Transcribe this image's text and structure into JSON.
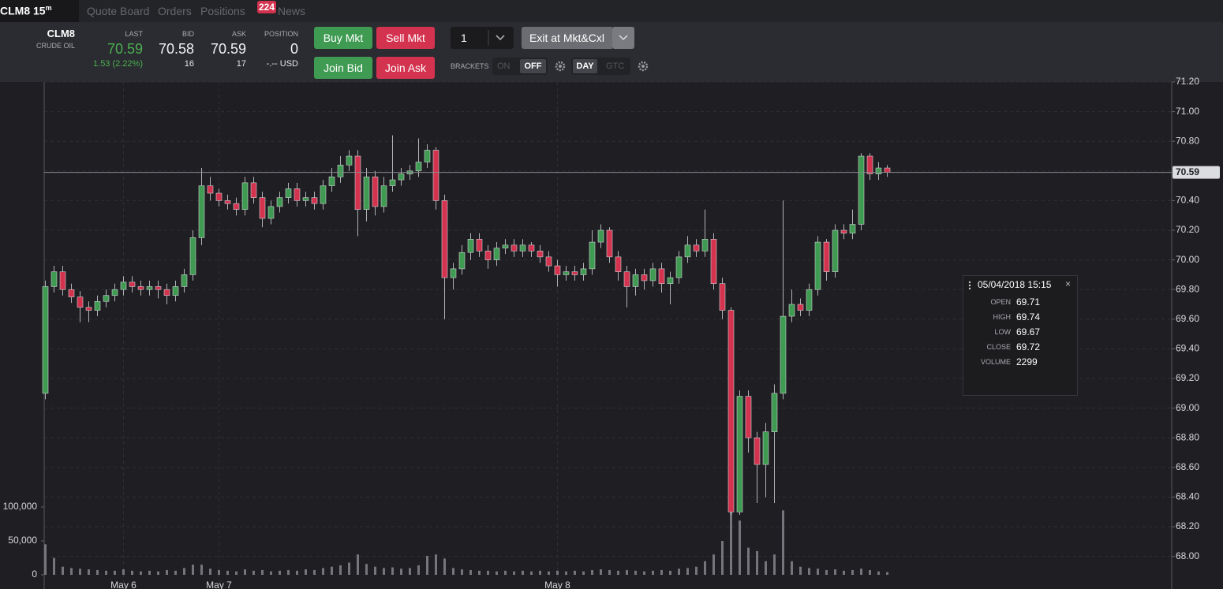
{
  "header": {
    "symbol": "CLM8",
    "interval": "15",
    "interval_unit": "m",
    "tabs": [
      "Quote Board",
      "Orders",
      "Positions",
      "News"
    ],
    "news_badge": "224"
  },
  "ticket": {
    "symbol": "CLM8",
    "name": "CRUDE OIL",
    "fields": [
      {
        "label": "LAST",
        "value": "70.59",
        "sub": "1.53 (2.22%)"
      },
      {
        "label": "BID",
        "value": "70.58",
        "sub": "16"
      },
      {
        "label": "ASK",
        "value": "70.59",
        "sub": "17"
      },
      {
        "label": "POSITION",
        "value": "0",
        "sub": "-.-- USD"
      }
    ],
    "buttons": [
      "Buy Mkt",
      "Sell Mkt",
      "Join Bid",
      "Join Ask"
    ],
    "quantity": "1",
    "exit_button": "Exit at Mkt&Cxl",
    "brackets_label": "BRACKETS",
    "brackets_options": [
      "ON",
      "OFF"
    ],
    "tif_options": [
      "DAY",
      "GTC"
    ]
  },
  "chart_data": {
    "type": "candlestick",
    "up_color": "#3f9b52",
    "down_color": "#d4334f",
    "volume_color": "#75767c",
    "grid": true,
    "categories": [
      null,
      null,
      null,
      null,
      null,
      null,
      null,
      null,
      null,
      "May 6",
      null,
      null,
      null,
      null,
      null,
      null,
      null,
      null,
      null,
      null,
      "May 7",
      null,
      null,
      null,
      null,
      null,
      null,
      null,
      null,
      null,
      null,
      null,
      null,
      null,
      null,
      null,
      null,
      null,
      null,
      null,
      null,
      null,
      null,
      null,
      null,
      null,
      null,
      null,
      null,
      null,
      null,
      null,
      null,
      null,
      null,
      null,
      null,
      null,
      null,
      "May 8",
      null,
      null,
      null,
      null,
      null,
      null,
      null,
      null,
      null,
      null,
      null,
      null,
      null,
      null,
      null,
      null,
      null,
      null,
      null,
      null,
      null,
      null,
      null,
      null,
      null,
      null,
      null,
      null,
      null,
      null,
      null,
      null,
      null,
      null,
      null,
      null,
      null,
      null
    ],
    "open": [
      69.1,
      69.82,
      69.92,
      69.8,
      69.75,
      69.68,
      69.66,
      69.72,
      69.76,
      69.8,
      69.85,
      69.82,
      69.8,
      69.82,
      69.8,
      69.76,
      69.82,
      69.9,
      70.15,
      70.5,
      70.45,
      70.4,
      70.38,
      70.34,
      70.52,
      70.42,
      70.28,
      70.36,
      70.42,
      70.48,
      70.4,
      70.42,
      70.38,
      70.5,
      70.56,
      70.64,
      70.7,
      70.34,
      70.56,
      70.36,
      70.5,
      70.54,
      70.58,
      70.6,
      70.66,
      70.74,
      70.4,
      69.88,
      69.94,
      70.05,
      70.14,
      70.06,
      70.0,
      70.08,
      70.1,
      70.06,
      70.1,
      70.06,
      70.02,
      69.96,
      69.9,
      69.92,
      69.9,
      69.94,
      70.12,
      70.2,
      70.02,
      69.92,
      69.82,
      69.9,
      69.86,
      69.94,
      69.84,
      69.88,
      70.02,
      70.1,
      70.06,
      70.14,
      69.84,
      69.66,
      68.3,
      69.08,
      68.8,
      68.62,
      68.84,
      69.1,
      69.62,
      69.7,
      69.66,
      69.8,
      70.12,
      69.92,
      70.2,
      70.18,
      70.24,
      70.7,
      70.58,
      70.62
    ],
    "high": [
      69.86,
      69.96,
      69.96,
      69.84,
      69.79,
      69.72,
      69.76,
      69.8,
      69.84,
      69.89,
      69.89,
      69.86,
      69.86,
      69.86,
      69.84,
      69.86,
      69.94,
      70.2,
      70.62,
      70.56,
      70.48,
      70.44,
      70.42,
      70.56,
      70.56,
      70.46,
      70.4,
      70.46,
      70.52,
      70.52,
      70.46,
      70.46,
      70.54,
      70.62,
      70.7,
      70.74,
      70.74,
      70.62,
      70.6,
      70.56,
      70.84,
      70.62,
      70.64,
      70.82,
      70.78,
      70.76,
      70.44,
      69.98,
      70.1,
      70.18,
      70.18,
      70.1,
      70.12,
      70.14,
      70.14,
      70.14,
      70.12,
      70.1,
      70.06,
      70.0,
      69.96,
      69.96,
      69.98,
      70.2,
      70.24,
      70.22,
      70.06,
      69.96,
      69.94,
      69.94,
      69.98,
      69.98,
      69.92,
      70.06,
      70.16,
      70.14,
      70.34,
      70.18,
      69.88,
      69.68,
      69.12,
      69.12,
      68.84,
      68.9,
      69.16,
      70.4,
      69.8,
      69.74,
      69.84,
      70.16,
      70.14,
      70.24,
      70.24,
      70.34,
      70.72,
      70.72,
      70.66,
      70.64
    ],
    "low": [
      69.06,
      69.78,
      69.76,
      69.71,
      69.58,
      69.58,
      69.62,
      69.68,
      69.72,
      69.76,
      69.78,
      69.76,
      69.76,
      69.74,
      69.7,
      69.72,
      69.78,
      69.86,
      70.1,
      70.4,
      70.36,
      70.34,
      70.3,
      70.3,
      70.38,
      70.22,
      70.24,
      70.32,
      70.38,
      70.36,
      70.36,
      70.34,
      70.34,
      70.46,
      70.52,
      70.6,
      70.16,
      70.26,
      70.3,
      70.32,
      70.46,
      70.5,
      70.54,
      70.56,
      70.62,
      70.34,
      69.6,
      69.8,
      69.9,
      70.0,
      70.02,
      69.94,
      69.96,
      70.04,
      70.02,
      70.02,
      70.02,
      69.98,
      69.92,
      69.82,
      69.86,
      69.86,
      69.86,
      69.9,
      70.08,
      69.98,
      69.86,
      69.68,
      69.76,
      69.8,
      69.82,
      69.78,
      69.7,
      69.84,
      69.98,
      70.02,
      70.02,
      69.8,
      69.6,
      68.28,
      68.28,
      68.7,
      68.36,
      68.4,
      68.36,
      69.06,
      69.58,
      69.62,
      69.62,
      69.76,
      69.86,
      69.88,
      70.14,
      70.14,
      70.2,
      70.54,
      70.54,
      70.56
    ],
    "close": [
      69.82,
      69.92,
      69.8,
      69.75,
      69.68,
      69.66,
      69.72,
      69.76,
      69.8,
      69.85,
      69.82,
      69.8,
      69.82,
      69.8,
      69.76,
      69.82,
      69.9,
      70.15,
      70.5,
      70.45,
      70.4,
      70.38,
      70.34,
      70.52,
      70.42,
      70.28,
      70.36,
      70.42,
      70.48,
      70.4,
      70.42,
      70.38,
      70.5,
      70.56,
      70.64,
      70.7,
      70.34,
      70.56,
      70.36,
      70.5,
      70.54,
      70.58,
      70.6,
      70.66,
      70.74,
      70.4,
      69.88,
      69.94,
      70.05,
      70.14,
      70.06,
      70.0,
      70.08,
      70.1,
      70.06,
      70.1,
      70.06,
      70.02,
      69.96,
      69.9,
      69.92,
      69.9,
      69.94,
      70.12,
      70.2,
      70.02,
      69.92,
      69.82,
      69.9,
      69.86,
      69.94,
      69.84,
      69.88,
      70.02,
      70.1,
      70.06,
      70.14,
      69.84,
      69.66,
      68.3,
      69.08,
      68.8,
      68.62,
      68.84,
      69.1,
      69.62,
      69.7,
      69.66,
      69.8,
      70.12,
      69.92,
      70.2,
      70.18,
      70.24,
      70.7,
      70.58,
      70.62,
      70.59
    ],
    "volume": [
      45000,
      25000,
      12000,
      10000,
      9000,
      8000,
      7000,
      6000,
      6000,
      8000,
      6000,
      5000,
      6000,
      5000,
      7000,
      6000,
      10000,
      15000,
      15000,
      9000,
      7000,
      6000,
      5000,
      8000,
      6000,
      7000,
      5000,
      6000,
      7000,
      6000,
      8000,
      7000,
      10000,
      12000,
      14000,
      18000,
      30000,
      16000,
      12000,
      10000,
      11000,
      9000,
      10000,
      14000,
      28000,
      30000,
      24000,
      10000,
      8000,
      7000,
      6000,
      6000,
      5000,
      6000,
      5000,
      6000,
      5000,
      6000,
      5000,
      6000,
      5000,
      6000,
      5000,
      7000,
      8000,
      7000,
      6000,
      7000,
      6000,
      5000,
      6000,
      7000,
      6000,
      9000,
      10000,
      12000,
      20000,
      30000,
      50000,
      95000,
      80000,
      40000,
      35000,
      20000,
      30000,
      95000,
      20000,
      12000,
      10000,
      9000,
      7000,
      8000,
      6000,
      7000,
      9000,
      7000,
      5000,
      4000
    ],
    "ylim": [
      67.78,
      71.2
    ],
    "yticks": [
      {
        "value": 68.0,
        "label": "68.00"
      },
      {
        "value": 68.2,
        "label": "68.20"
      },
      {
        "value": 68.4,
        "label": "68.40"
      },
      {
        "value": 68.6,
        "label": "68.60"
      },
      {
        "value": 68.8,
        "label": "68.80"
      },
      {
        "value": 69.0,
        "label": "69.00"
      },
      {
        "value": 69.2,
        "label": "69.20"
      },
      {
        "value": 69.4,
        "label": "69.40"
      },
      {
        "value": 69.6,
        "label": "69.60"
      },
      {
        "value": 69.8,
        "label": "69.80"
      },
      {
        "value": 70.0,
        "label": "70.00"
      },
      {
        "value": 70.2,
        "label": "70.20"
      },
      {
        "value": 70.4,
        "label": "70.40"
      },
      {
        "value": 70.6,
        "label": "70.60"
      },
      {
        "value": 70.8,
        "label": "70.80"
      },
      {
        "value": 71.0,
        "label": "71.00"
      },
      {
        "value": 71.2,
        "label": "71.20"
      }
    ],
    "volume_ylim": [
      0,
      150000
    ],
    "volume_yticks": [
      0,
      {
        "value": 50000,
        "label": "50,000"
      },
      {
        "value": 100000,
        "label": "100,000"
      }
    ],
    "last_price": {
      "value": 70.59,
      "label": "70.59"
    }
  },
  "tooltip": {
    "date": "05/04/2018 15:15",
    "close": "×",
    "rows": [
      [
        "OPEN",
        "69.71"
      ],
      [
        "HIGH",
        "69.74"
      ],
      [
        "LOW",
        "69.67"
      ],
      [
        "CLOSE",
        "69.72"
      ],
      [
        "VOLUME",
        "2299"
      ]
    ]
  }
}
